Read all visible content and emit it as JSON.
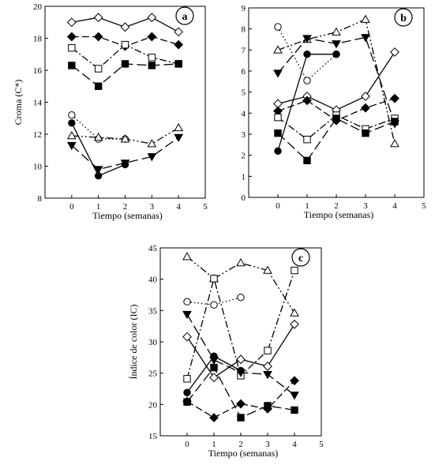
{
  "chart_data": [
    {
      "panel": "a",
      "type": "line",
      "xlabel": "Tiempo (semanas)",
      "ylabel": "Croma (C*)",
      "xlim": [
        -1,
        5
      ],
      "ylim": [
        8,
        20
      ],
      "xticks": [
        0,
        1,
        2,
        3,
        4,
        5
      ],
      "yticks": [
        8,
        10,
        12,
        14,
        16,
        18,
        20
      ],
      "series": [
        {
          "marker": "diamond-open",
          "dash": "solid",
          "x": [
            0,
            1,
            2,
            3,
            4
          ],
          "y": [
            19.0,
            19.3,
            18.7,
            19.3,
            18.4
          ]
        },
        {
          "marker": "diamond-filled",
          "dash": "dashed",
          "x": [
            0,
            1,
            2,
            3,
            4
          ],
          "y": [
            18.1,
            18.1,
            17.5,
            18.1,
            17.6
          ]
        },
        {
          "marker": "square-open",
          "dash": "dashdot",
          "x": [
            0,
            1,
            2,
            3,
            4
          ],
          "y": [
            17.4,
            16.1,
            17.6,
            16.8,
            16.4
          ]
        },
        {
          "marker": "square-filled",
          "dash": "longdash",
          "x": [
            0,
            1,
            2,
            3,
            4
          ],
          "y": [
            16.3,
            15.0,
            16.4,
            16.3,
            16.4
          ]
        },
        {
          "marker": "circle-open",
          "dash": "dotted",
          "x": [
            0,
            1,
            2
          ],
          "y": [
            13.2,
            11.7,
            11.7
          ]
        },
        {
          "marker": "circle-filled",
          "dash": "solid",
          "x": [
            0,
            1,
            2
          ],
          "y": [
            12.7,
            9.4,
            10.1
          ]
        },
        {
          "marker": "triangle-open",
          "dash": "dashdotdot",
          "x": [
            0,
            1,
            2,
            3,
            4
          ],
          "y": [
            11.9,
            11.8,
            11.7,
            11.4,
            12.4
          ]
        },
        {
          "marker": "triangle-filled",
          "dash": "longdash",
          "x": [
            0,
            1,
            2,
            3,
            4
          ],
          "y": [
            11.3,
            9.8,
            10.2,
            10.6,
            11.8
          ]
        }
      ]
    },
    {
      "panel": "b",
      "type": "line",
      "xlabel": "Tiempo (semanas)",
      "ylabel": "",
      "xlim": [
        -1,
        5
      ],
      "ylim": [
        0,
        9
      ],
      "xticks": [
        0,
        1,
        2,
        3,
        4,
        5
      ],
      "yticks": [
        0,
        1,
        2,
        3,
        4,
        5,
        6,
        7,
        8,
        9
      ],
      "series": [
        {
          "marker": "circle-open",
          "dash": "dotted",
          "x": [
            0,
            1,
            2
          ],
          "y": [
            8.1,
            5.55,
            6.8
          ]
        },
        {
          "marker": "circle-filled",
          "dash": "solid",
          "x": [
            0,
            1,
            2
          ],
          "y": [
            2.2,
            6.8,
            6.8
          ]
        },
        {
          "marker": "triangle-open",
          "dash": "dashdotdot",
          "x": [
            0,
            1,
            2,
            3,
            4
          ],
          "y": [
            7.0,
            7.5,
            7.85,
            8.45,
            2.55
          ]
        },
        {
          "marker": "triangle-filled",
          "dash": "longdash",
          "x": [
            0,
            1,
            2,
            3,
            4
          ],
          "y": [
            5.9,
            7.55,
            7.3,
            7.6,
            3.5
          ]
        },
        {
          "marker": "diamond-open",
          "dash": "solid",
          "x": [
            0,
            1,
            2,
            3,
            4
          ],
          "y": [
            4.45,
            4.8,
            4.15,
            4.8,
            6.9
          ]
        },
        {
          "marker": "diamond-filled",
          "dash": "dashed",
          "x": [
            0,
            1,
            2,
            3,
            4
          ],
          "y": [
            4.1,
            4.6,
            3.65,
            4.25,
            4.7
          ]
        },
        {
          "marker": "square-open",
          "dash": "dashdot",
          "x": [
            0,
            1,
            2,
            3,
            4
          ],
          "y": [
            3.8,
            2.75,
            3.9,
            3.25,
            3.75
          ]
        },
        {
          "marker": "square-filled",
          "dash": "longdash",
          "x": [
            0,
            1,
            2,
            3,
            4
          ],
          "y": [
            3.05,
            1.75,
            3.75,
            3.05,
            3.6
          ]
        }
      ]
    },
    {
      "panel": "c",
      "type": "line",
      "xlabel": "Tiempo (semanas)",
      "ylabel": "Índice de color (IC)",
      "xlim": [
        -1,
        5
      ],
      "ylim": [
        15,
        45
      ],
      "xticks": [
        0,
        1,
        2,
        3,
        4,
        5
      ],
      "yticks": [
        15,
        20,
        25,
        30,
        35,
        40,
        45
      ],
      "series": [
        {
          "marker": "triangle-open",
          "dash": "dashdotdot",
          "x": [
            0,
            1,
            2,
            3,
            4
          ],
          "y": [
            43.6,
            40.1,
            42.6,
            41.4,
            34.6
          ]
        },
        {
          "marker": "square-open",
          "dash": "dashdot",
          "x": [
            0,
            1,
            2,
            3,
            4
          ],
          "y": [
            24.1,
            40.1,
            24.6,
            28.6,
            41.4
          ]
        },
        {
          "marker": "circle-open",
          "dash": "dotted",
          "x": [
            0,
            1,
            2
          ],
          "y": [
            36.4,
            35.9,
            37.1
          ]
        },
        {
          "marker": "triangle-filled",
          "dash": "longdash",
          "x": [
            0,
            1,
            2,
            3,
            4
          ],
          "y": [
            34.4,
            27.1,
            25.1,
            24.8,
            21.5
          ]
        },
        {
          "marker": "diamond-open",
          "dash": "solid",
          "x": [
            0,
            1,
            2,
            3,
            4
          ],
          "y": [
            30.8,
            24.3,
            27.2,
            26.1,
            32.8
          ]
        },
        {
          "marker": "circle-filled",
          "dash": "solid",
          "x": [
            0,
            1,
            2
          ],
          "y": [
            21.9,
            27.7,
            25.4
          ]
        },
        {
          "marker": "square-filled",
          "dash": "longdash",
          "x": [
            0,
            1,
            2,
            3,
            4
          ],
          "y": [
            20.4,
            25.9,
            17.9,
            19.8,
            19.1
          ]
        },
        {
          "marker": "diamond-filled",
          "dash": "dashed",
          "x": [
            0,
            1,
            2,
            3,
            4
          ],
          "y": [
            20.5,
            17.9,
            20.1,
            19.3,
            23.8
          ]
        }
      ]
    }
  ]
}
